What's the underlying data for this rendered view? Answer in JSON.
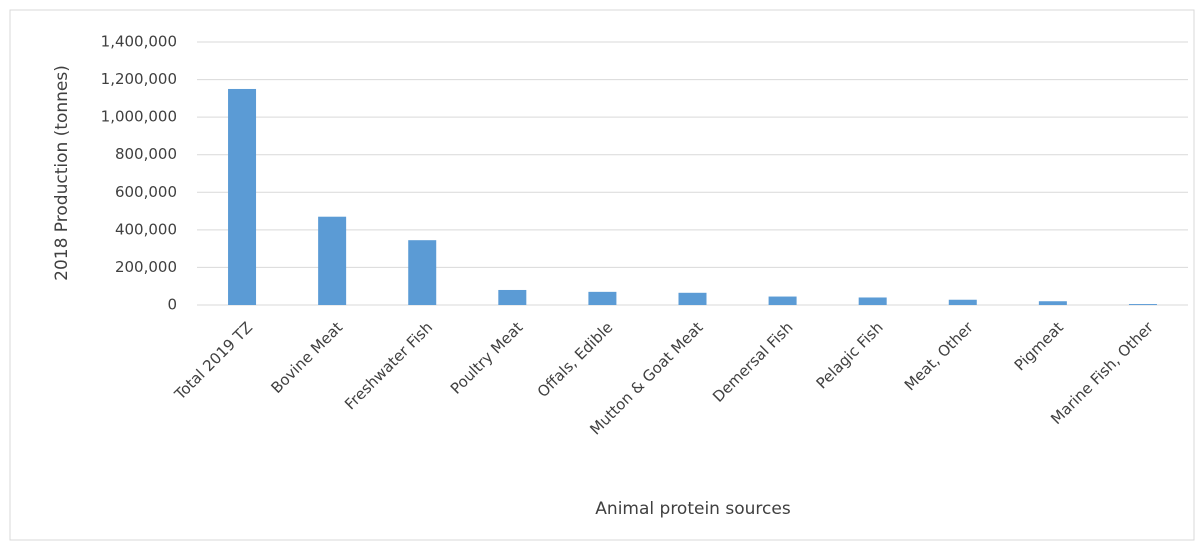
{
  "chart_data": {
    "type": "bar",
    "x_label": "Animal protein sources",
    "y_label": "2018 Production (tonnes)",
    "categories": [
      "Total 2019 TZ",
      "Bovine Meat",
      "Freshwater Fish",
      "Poultry Meat",
      "Offals, Edible",
      "Mutton & Goat Meat",
      "Demersal Fish",
      "Pelagic Fish",
      "Meat, Other",
      "Pigmeat",
      "Marine Fish, Other"
    ],
    "values": [
      1150000,
      470000,
      345000,
      80000,
      70000,
      65000,
      45000,
      40000,
      28000,
      20000,
      5000
    ],
    "color": "#5b9bd5",
    "ylim": [
      0,
      1400000
    ],
    "yticks": [
      0,
      {
        "value": 200000,
        "label": "200,000"
      },
      {
        "value": 400000,
        "label": "400,000"
      },
      {
        "value": 600000,
        "label": "600,000"
      },
      {
        "value": 800000,
        "label": "800,000"
      },
      {
        "value": 1000000,
        "label": "1,000,000"
      },
      {
        "value": 1200000,
        "label": "1,200,000"
      },
      {
        "value": 1400000,
        "label": "1,400,000"
      }
    ],
    "grid": true
  }
}
